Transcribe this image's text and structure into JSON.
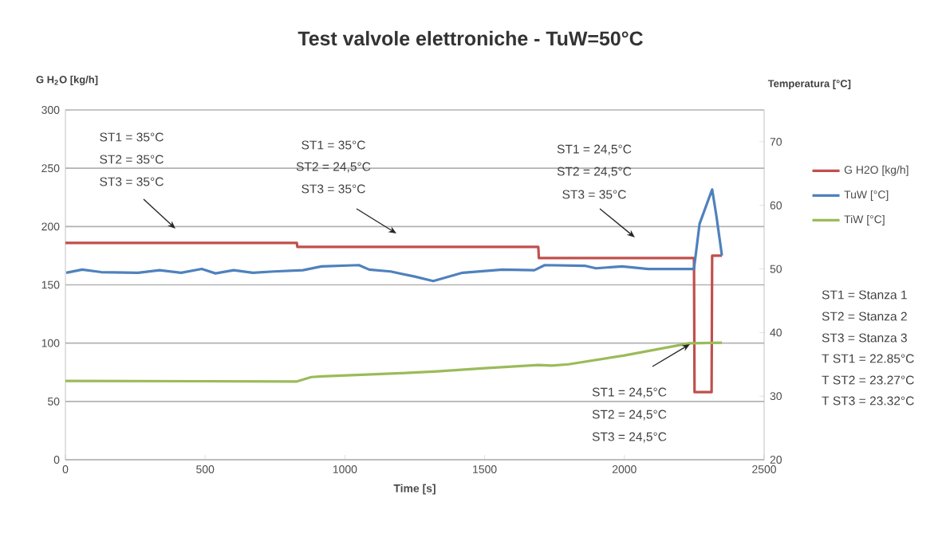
{
  "chart_data": {
    "type": "line",
    "title": "Test valvole elettroniche - TuW=50°C",
    "xlabel": "Time [s]",
    "ylabel": "G H$_{2}$O [kg/h]",
    "y2label": "Temperatura [°C]",
    "xlim": [
      0,
      2500
    ],
    "xticks": [
      0,
      500,
      1000,
      1500,
      2000,
      2500
    ],
    "ylim": [
      0,
      300
    ],
    "yticks": [
      0,
      50,
      100,
      150,
      200,
      250,
      300
    ],
    "y2lim": [
      20,
      75
    ],
    "y2ticks": [
      20,
      30,
      40,
      50,
      60,
      70
    ],
    "grid": "y",
    "legend": "right",
    "series": [
      {
        "name": "G H2O [kg/h]",
        "color": "#c0504d",
        "x": [
          0,
          828,
          830,
          1692,
          1694,
          2249,
          2251,
          2312,
          2314,
          2349
        ],
        "values": [
          186,
          186,
          182.5,
          182.5,
          173,
          173,
          58,
          58,
          175,
          175
        ]
      },
      {
        "name": "TuW [°C]",
        "color": "#4f81bd",
        "axis": "y2",
        "x": [
          3,
          60,
          128,
          260,
          337,
          414,
          488,
          537,
          602,
          671,
          745,
          850,
          916,
          1050,
          1087,
          1164,
          1250,
          1316,
          1421,
          1564,
          1678,
          1715,
          1858,
          1898,
          1992,
          2086,
          2249,
          2269,
          2314,
          2329,
          2349
        ],
        "values": [
          49.4,
          49.9,
          49.5,
          49.4,
          49.8,
          49.4,
          50.0,
          49.3,
          49.8,
          49.4,
          49.6,
          49.8,
          50.4,
          50.6,
          49.9,
          49.6,
          48.8,
          48.1,
          49.4,
          49.9,
          49.8,
          50.6,
          50.5,
          50.1,
          50.4,
          50.0,
          50.0,
          57.1,
          62.5,
          58.4,
          52.1
        ]
      },
      {
        "name": "TiW [°C]",
        "color": "#9bbb59",
        "axis": "y2",
        "x": [
          0,
          828,
          880,
          919,
          1200,
          1330,
          1500,
          1692,
          1740,
          1800,
          2000,
          2232,
          2349
        ],
        "values": [
          32.4,
          32.3,
          33.0,
          33.1,
          33.6,
          33.9,
          34.4,
          34.9,
          34.8,
          35.0,
          36.4,
          38.3,
          38.4
        ]
      }
    ],
    "annotations": [
      "ST1 = 35°C",
      "ST2 = 35°C",
      "ST3 = 35°C",
      "ST1 = 35°C",
      "ST2 = 24,5°C",
      "ST3 = 35°C",
      "ST1 = 24,5°C",
      "ST2 = 24,5°C",
      "ST3 = 35°C",
      "ST1 = 24,5°C",
      "ST2 = 24,5°C",
      "ST3 = 24,5°C",
      "ST1 = Stanza 1",
      "ST2 = Stanza 2",
      "ST3 = Stanza 3",
      "T ST1 = 22.85°C",
      "T ST2 = 23.27°C",
      "T ST3 = 23.32°C"
    ]
  }
}
